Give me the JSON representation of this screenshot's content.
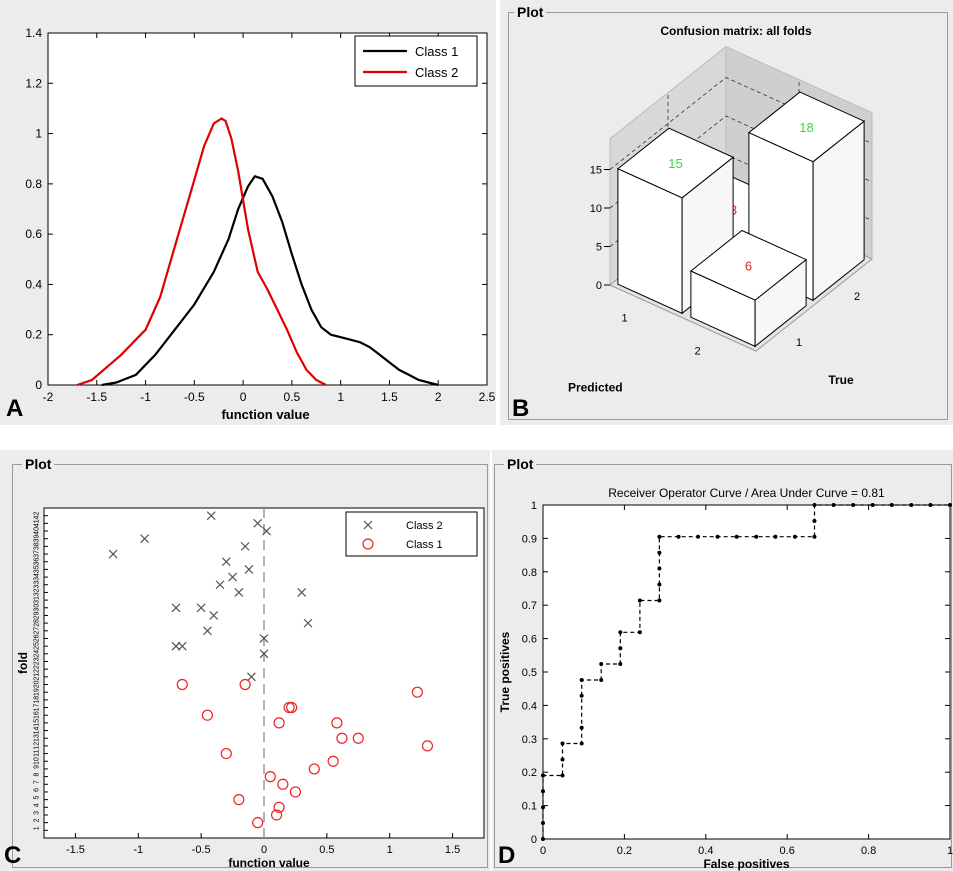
{
  "panels": {
    "a": {
      "letter": "A"
    },
    "b": {
      "letter": "B",
      "group_label": "Plot"
    },
    "c": {
      "letter": "C",
      "group_label": "Plot"
    },
    "d": {
      "letter": "D",
      "group_label": "Plot"
    }
  },
  "chart_data": [
    {
      "id": "A",
      "type": "line",
      "title": "",
      "xlabel": "function value",
      "ylabel": "",
      "xlim": [
        -2,
        2.5
      ],
      "ylim": [
        0,
        1.4
      ],
      "xticks": [
        "-2",
        "-1.5",
        "-1",
        "-0.5",
        "0",
        "0.5",
        "1",
        "1.5",
        "2",
        "2.5"
      ],
      "yticks": [
        "0",
        "0.2",
        "0.4",
        "0.6",
        "0.8",
        "1",
        "1.2",
        "1.4"
      ],
      "legend_position": "top-right",
      "series": [
        {
          "name": "Class 1",
          "color": "#000000",
          "x": [
            -1.45,
            -1.3,
            -1.1,
            -0.9,
            -0.7,
            -0.5,
            -0.3,
            -0.15,
            -0.05,
            0.05,
            0.12,
            0.2,
            0.3,
            0.4,
            0.5,
            0.6,
            0.7,
            0.8,
            0.9,
            1.0,
            1.1,
            1.2,
            1.3,
            1.4,
            1.5,
            1.6,
            1.7,
            1.8,
            1.9,
            2.0
          ],
          "y": [
            0.0,
            0.01,
            0.04,
            0.12,
            0.22,
            0.32,
            0.45,
            0.58,
            0.7,
            0.79,
            0.83,
            0.82,
            0.75,
            0.65,
            0.52,
            0.4,
            0.3,
            0.23,
            0.2,
            0.19,
            0.18,
            0.17,
            0.15,
            0.12,
            0.09,
            0.06,
            0.04,
            0.02,
            0.01,
            0.0
          ]
        },
        {
          "name": "Class 2",
          "color": "#e00000",
          "x": [
            -1.7,
            -1.55,
            -1.4,
            -1.25,
            -1.1,
            -1.0,
            -0.85,
            -0.7,
            -0.55,
            -0.4,
            -0.3,
            -0.22,
            -0.18,
            -0.12,
            -0.05,
            0.05,
            0.15,
            0.25,
            0.35,
            0.45,
            0.55,
            0.65,
            0.75,
            0.85
          ],
          "y": [
            0.0,
            0.02,
            0.07,
            0.12,
            0.18,
            0.22,
            0.35,
            0.55,
            0.75,
            0.95,
            1.04,
            1.06,
            1.05,
            0.98,
            0.85,
            0.62,
            0.45,
            0.38,
            0.3,
            0.22,
            0.13,
            0.06,
            0.02,
            0.0
          ]
        }
      ]
    },
    {
      "id": "B",
      "type": "bar3d",
      "title": "Confusion matrix: all folds",
      "xlabel": "Predicted",
      "ylabel": "True",
      "zticks": [
        "0",
        "5",
        "10",
        "15"
      ],
      "predicted_ticks": [
        "1",
        "2"
      ],
      "true_ticks": [
        "1",
        "2"
      ],
      "cells": [
        {
          "predicted": "1",
          "true": "1",
          "value": 15,
          "correct": true
        },
        {
          "predicted": "1",
          "true": "2",
          "value": 3,
          "correct": false
        },
        {
          "predicted": "2",
          "true": "2",
          "value": 18,
          "correct": true
        },
        {
          "predicted": "2",
          "true": "1",
          "value": 6,
          "correct": false
        }
      ],
      "colors": {
        "correct": "#33dd33",
        "incorrect": "#ee2222"
      }
    },
    {
      "id": "C",
      "type": "scatter",
      "title": "",
      "xlabel": "function value",
      "ylabel": "fold",
      "xlim": [
        -1.75,
        1.75
      ],
      "ylim": [
        0,
        43
      ],
      "xticks": [
        "-1.5",
        "-1",
        "-0.5",
        "0",
        "0.5",
        "1",
        "1.5"
      ],
      "yticks": [
        "1",
        "2",
        "3",
        "4",
        "5",
        "6",
        "7",
        "8",
        "9",
        "10",
        "11",
        "12",
        "13",
        "14",
        "15",
        "16",
        "17",
        "18",
        "19",
        "20",
        "21",
        "22",
        "23",
        "24",
        "25",
        "26",
        "27",
        "28",
        "29",
        "30",
        "31",
        "32",
        "33",
        "34",
        "35",
        "36",
        "37",
        "38",
        "39",
        "40",
        "41",
        "42"
      ],
      "legend_position": "top-right",
      "series": [
        {
          "name": "Class 2",
          "marker": "x",
          "color": "#555555",
          "x": [
            -0.1,
            -1.2,
            -0.2,
            -0.5,
            0.3,
            -0.7,
            0.35,
            -0.65,
            -0.45,
            -0.15,
            0.0,
            -0.7,
            -0.4,
            0.0,
            -0.25,
            -0.35,
            -0.95,
            -0.12,
            -0.05,
            -0.3,
            0.02,
            -0.42
          ],
          "y": [
            21,
            37,
            32,
            30,
            32,
            30,
            28,
            25,
            27,
            38,
            26,
            25,
            29,
            24,
            34,
            33,
            39,
            35,
            41,
            36,
            40,
            42
          ]
        },
        {
          "name": "Class 1",
          "marker": "o",
          "color": "#ee2222",
          "x": [
            -0.65,
            -0.15,
            -0.45,
            0.2,
            0.22,
            1.22,
            0.12,
            0.58,
            0.62,
            0.75,
            1.3,
            -0.3,
            0.55,
            0.4,
            0.05,
            0.15,
            0.25,
            -0.2,
            0.12,
            0.1,
            -0.05
          ],
          "y": [
            20,
            20,
            16,
            17,
            17,
            19,
            15,
            15,
            13,
            13,
            12,
            11,
            10,
            9,
            8,
            7,
            6,
            5,
            4,
            3,
            2
          ]
        }
      ]
    },
    {
      "id": "D",
      "type": "line",
      "title": "Receiver Operator Curve / Area Under Curve = 0.81",
      "xlabel": "False positives",
      "ylabel": "True positives",
      "xlim": [
        0,
        1
      ],
      "ylim": [
        0,
        1
      ],
      "xticks": [
        "0",
        "0.2",
        "0.4",
        "0.6",
        "0.8",
        "1"
      ],
      "yticks": [
        "0",
        "0.1",
        "0.2",
        "0.3",
        "0.4",
        "0.5",
        "0.6",
        "0.7",
        "0.8",
        "0.9",
        "1"
      ],
      "series": [
        {
          "name": "",
          "color": "#000000",
          "style": "dashed-step-markers",
          "x": [
            0,
            0,
            0,
            0,
            0,
            0.048,
            0.048,
            0.048,
            0.095,
            0.095,
            0.095,
            0.095,
            0.143,
            0.143,
            0.19,
            0.19,
            0.19,
            0.238,
            0.238,
            0.286,
            0.286,
            0.286,
            0.286,
            0.286,
            0.333,
            0.381,
            0.429,
            0.476,
            0.524,
            0.571,
            0.619,
            0.667,
            0.667,
            0.667,
            0.714,
            0.762,
            0.81,
            0.857,
            0.905,
            0.952,
            1.0
          ],
          "y": [
            0,
            0.048,
            0.095,
            0.143,
            0.19,
            0.19,
            0.238,
            0.286,
            0.286,
            0.333,
            0.429,
            0.476,
            0.476,
            0.524,
            0.524,
            0.571,
            0.619,
            0.619,
            0.714,
            0.714,
            0.762,
            0.81,
            0.857,
            0.905,
            0.905,
            0.905,
            0.905,
            0.905,
            0.905,
            0.905,
            0.905,
            0.905,
            0.952,
            1.0,
            1.0,
            1.0,
            1.0,
            1.0,
            1.0,
            1.0,
            1.0
          ]
        }
      ]
    }
  ]
}
